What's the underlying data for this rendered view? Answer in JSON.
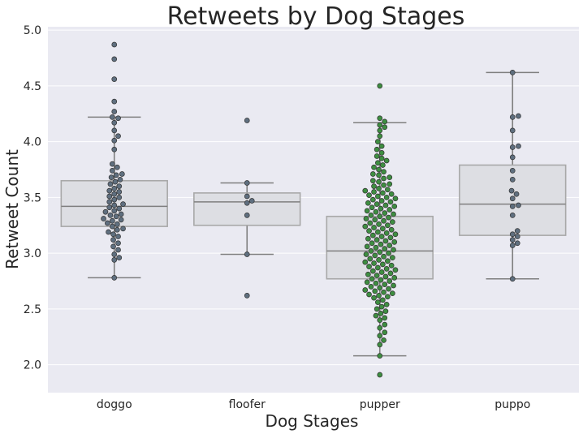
{
  "chart_data": {
    "type": "box+swarm",
    "title": "Retweets by Dog Stages",
    "xlabel": "Dog Stages",
    "ylabel": "Retweet Count",
    "ylim": [
      1.75,
      5.03
    ],
    "yticks": [
      "2.0",
      "2.5",
      "3.0",
      "3.5",
      "4.0",
      "4.5",
      "5.0"
    ],
    "grid": true,
    "colors": {
      "plot_bg": "#EAEAF2",
      "grid": "#FFFFFF",
      "box_fill": "#DDDEE3",
      "box_edge": "#A8A8A8",
      "whisker": "#7F7F7F",
      "median": "#7F7F7F",
      "point_edge": "#333333",
      "point_default": "#5F6F7F",
      "point_pupper": "#3E8E41"
    },
    "categories": [
      "doggo",
      "floofer",
      "pupper",
      "puppo"
    ],
    "boxes": [
      {
        "category": "doggo",
        "q1": 3.24,
        "median": 3.42,
        "q3": 3.65,
        "whisker_low": 2.78,
        "whisker_high": 4.22
      },
      {
        "category": "floofer",
        "q1": 3.25,
        "median": 3.46,
        "q3": 3.54,
        "whisker_low": 2.99,
        "whisker_high": 3.63
      },
      {
        "category": "pupper",
        "q1": 2.77,
        "median": 3.02,
        "q3": 3.33,
        "whisker_low": 2.08,
        "whisker_high": 4.17
      },
      {
        "category": "puppo",
        "q1": 3.16,
        "median": 3.44,
        "q3": 3.79,
        "whisker_low": 2.77,
        "whisker_high": 4.62
      }
    ],
    "points": {
      "doggo": [
        4.87,
        4.74,
        4.56,
        4.36,
        4.27,
        4.22,
        4.21,
        4.17,
        4.1,
        4.05,
        4.01,
        3.93,
        3.8,
        3.77,
        3.74,
        3.71,
        3.7,
        3.68,
        3.66,
        3.64,
        3.62,
        3.6,
        3.58,
        3.56,
        3.55,
        3.53,
        3.51,
        3.5,
        3.48,
        3.46,
        3.44,
        3.43,
        3.41,
        3.4,
        3.38,
        3.37,
        3.35,
        3.34,
        3.33,
        3.31,
        3.3,
        3.29,
        3.27,
        3.26,
        3.24,
        3.22,
        3.21,
        3.19,
        3.17,
        3.15,
        3.12,
        3.09,
        3.06,
        3.03,
        2.99,
        2.96,
        2.94,
        2.78
      ],
      "floofer": [
        4.19,
        3.63,
        3.51,
        3.47,
        3.45,
        3.34,
        2.99,
        2.62
      ],
      "pupper": [
        4.5,
        4.21,
        4.18,
        4.15,
        4.13,
        4.1,
        4.05,
        4.0,
        3.96,
        3.93,
        3.9,
        3.87,
        3.85,
        3.83,
        3.81,
        3.79,
        3.77,
        3.75,
        3.73,
        3.71,
        3.7,
        3.68,
        3.67,
        3.65,
        3.64,
        3.62,
        3.61,
        3.6,
        3.58,
        3.57,
        3.56,
        3.55,
        3.54,
        3.53,
        3.52,
        3.51,
        3.5,
        3.49,
        3.48,
        3.47,
        3.46,
        3.45,
        3.44,
        3.43,
        3.42,
        3.41,
        3.4,
        3.39,
        3.38,
        3.37,
        3.36,
        3.35,
        3.34,
        3.33,
        3.32,
        3.31,
        3.3,
        3.29,
        3.28,
        3.27,
        3.26,
        3.25,
        3.24,
        3.23,
        3.22,
        3.21,
        3.2,
        3.19,
        3.18,
        3.17,
        3.16,
        3.15,
        3.14,
        3.13,
        3.12,
        3.11,
        3.1,
        3.09,
        3.08,
        3.07,
        3.06,
        3.05,
        3.04,
        3.03,
        3.02,
        3.01,
        3.0,
        2.99,
        2.98,
        2.97,
        2.96,
        2.95,
        2.94,
        2.93,
        2.92,
        2.91,
        2.9,
        2.89,
        2.88,
        2.87,
        2.86,
        2.85,
        2.84,
        2.83,
        2.82,
        2.81,
        2.8,
        2.79,
        2.78,
        2.77,
        2.76,
        2.75,
        2.74,
        2.73,
        2.72,
        2.71,
        2.7,
        2.69,
        2.68,
        2.67,
        2.66,
        2.65,
        2.64,
        2.63,
        2.62,
        2.61,
        2.6,
        2.58,
        2.56,
        2.54,
        2.52,
        2.5,
        2.48,
        2.46,
        2.44,
        2.42,
        2.4,
        2.36,
        2.33,
        2.29,
        2.26,
        2.22,
        2.18,
        2.08,
        1.91
      ],
      "puppo": [
        4.62,
        4.23,
        4.22,
        4.1,
        3.96,
        3.95,
        3.86,
        3.74,
        3.66,
        3.56,
        3.53,
        3.49,
        3.43,
        3.42,
        3.34,
        3.2,
        3.17,
        3.15,
        3.12,
        3.09,
        3.07,
        2.77
      ]
    }
  }
}
